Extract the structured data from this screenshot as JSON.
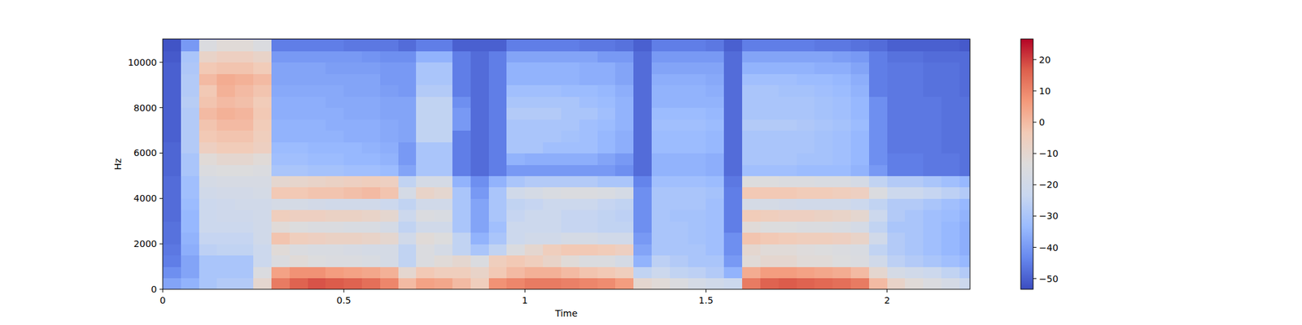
{
  "chart_data": {
    "type": "heatmap",
    "x_label": "Time",
    "y_label": "Hz",
    "color": "coolwarm",
    "xlim": [
      0,
      2.229
    ],
    "ylim": [
      0,
      11025
    ],
    "xticks": [
      0,
      0.5,
      1,
      1.5,
      2
    ],
    "yticks": [
      0,
      2000,
      4000,
      6000,
      8000,
      10000
    ],
    "x": [
      0,
      0.05,
      0.1,
      0.15,
      0.2,
      0.25,
      0.3,
      0.35,
      0.4,
      0.45,
      0.5,
      0.55,
      0.6,
      0.65,
      0.7,
      0.75,
      0.8,
      0.85,
      0.9,
      0.95,
      1,
      1.05,
      1.1,
      1.15,
      1.2,
      1.25,
      1.3,
      1.35,
      1.4,
      1.45,
      1.5,
      1.55,
      1.6,
      1.65,
      1.7,
      1.75,
      1.8,
      1.85,
      1.9,
      1.95,
      2,
      2.05,
      2.1,
      2.15,
      2.2
    ],
    "y": [
      0,
      500,
      1000,
      1500,
      2000,
      2500,
      3000,
      3500,
      4000,
      4500,
      5000,
      5500,
      6000,
      6500,
      7000,
      7500,
      8000,
      8500,
      9000,
      9500,
      10000,
      10500
    ],
    "cells": [
      [
        -38,
        -35,
        -30,
        -28,
        -28,
        -10,
        12,
        16,
        18,
        17,
        16,
        14,
        10,
        0,
        5,
        4,
        0,
        -5,
        8,
        10,
        12,
        12,
        11,
        10,
        9,
        6,
        -10,
        -12,
        -15,
        -18,
        -20,
        -22,
        12,
        16,
        17,
        16,
        15,
        14,
        12,
        0,
        -8,
        -12,
        -15,
        -18,
        -22
      ],
      [
        -42,
        -38,
        -30,
        -30,
        -30,
        -15,
        5,
        8,
        8,
        6,
        5,
        4,
        2,
        -10,
        -3,
        -5,
        -5,
        -8,
        -3,
        0,
        2,
        2,
        0,
        -2,
        -3,
        -5,
        -25,
        -22,
        -25,
        -26,
        -28,
        -35,
        3,
        6,
        6,
        5,
        4,
        3,
        0,
        -10,
        -18,
        -20,
        -22,
        -25,
        -28
      ],
      [
        -45,
        -38,
        -30,
        -30,
        -30,
        -22,
        -15,
        -12,
        -14,
        -15,
        -15,
        -16,
        -18,
        -25,
        -15,
        -12,
        -10,
        -15,
        -5,
        -3,
        -5,
        -8,
        -12,
        -15,
        -15,
        -18,
        -35,
        -26,
        -28,
        -30,
        -30,
        -40,
        -12,
        -10,
        -10,
        -12,
        -12,
        -14,
        -15,
        -20,
        -26,
        -28,
        -30,
        -32,
        -34
      ],
      [
        -46,
        -36,
        -26,
        -25,
        -25,
        -22,
        -12,
        -15,
        -16,
        -16,
        -17,
        -18,
        -18,
        -25,
        -15,
        -18,
        -25,
        -30,
        -25,
        -15,
        -10,
        -5,
        -3,
        -3,
        -4,
        -6,
        -38,
        -30,
        -30,
        -30,
        -32,
        -42,
        -10,
        -12,
        -12,
        -13,
        -14,
        -15,
        -16,
        -25,
        -28,
        -30,
        -32,
        -34,
        -36
      ],
      [
        -47,
        -35,
        -24,
        -24,
        -24,
        -20,
        -2,
        -5,
        -6,
        -7,
        -7,
        -8,
        -10,
        -20,
        -12,
        -14,
        -25,
        -35,
        -30,
        -22,
        -20,
        -20,
        -18,
        -18,
        -20,
        -20,
        -40,
        -30,
        -30,
        -31,
        -32,
        -42,
        -2,
        -3,
        -4,
        -5,
        -5,
        -6,
        -8,
        -20,
        -28,
        -30,
        -32,
        -34,
        -36
      ],
      [
        -47,
        -34,
        -22,
        -22,
        -22,
        -20,
        -12,
        -14,
        -15,
        -15,
        -16,
        -16,
        -18,
        -25,
        -20,
        -20,
        -30,
        -38,
        -32,
        -22,
        -22,
        -22,
        -24,
        -24,
        -25,
        -25,
        -42,
        -30,
        -30,
        -31,
        -32,
        -45,
        -12,
        -14,
        -14,
        -15,
        -15,
        -16,
        -18,
        -25,
        -30,
        -30,
        -32,
        -34,
        -36
      ],
      [
        -48,
        -34,
        -22,
        -21,
        -21,
        -20,
        -5,
        -6,
        -6,
        -7,
        -7,
        -8,
        -10,
        -22,
        -15,
        -16,
        -30,
        -38,
        -30,
        -24,
        -22,
        -22,
        -24,
        -24,
        -25,
        -26,
        -42,
        -30,
        -31,
        -31,
        -32,
        -45,
        -4,
        -5,
        -6,
        -6,
        -7,
        -8,
        -10,
        -22,
        -28,
        -30,
        -32,
        -33,
        -35
      ],
      [
        -48,
        -33,
        -22,
        -21,
        -20,
        -20,
        -18,
        -18,
        -19,
        -20,
        -20,
        -20,
        -22,
        -25,
        -20,
        -20,
        -30,
        -38,
        -30,
        -25,
        -24,
        -22,
        -22,
        -22,
        -24,
        -25,
        -42,
        -30,
        -30,
        -30,
        -32,
        -45,
        -18,
        -18,
        -19,
        -20,
        -20,
        -20,
        -22,
        -25,
        -28,
        -28,
        -30,
        -32,
        -34
      ],
      [
        -48,
        -32,
        -20,
        -19,
        -19,
        -18,
        -3,
        -3,
        -2,
        -2,
        -1,
        0,
        -2,
        -18,
        -8,
        -10,
        -30,
        -40,
        -30,
        -20,
        -18,
        -16,
        -15,
        -15,
        -16,
        -18,
        -42,
        -30,
        -30,
        -30,
        -31,
        -45,
        -3,
        -3,
        -3,
        -4,
        -4,
        -5,
        -6,
        -15,
        -22,
        -22,
        -24,
        -26,
        -28
      ],
      [
        -48,
        -32,
        -18,
        -17,
        -17,
        -17,
        -10,
        -9,
        -8,
        -7,
        -6,
        -5,
        -6,
        -25,
        -18,
        -18,
        -35,
        -42,
        -35,
        -30,
        -28,
        -28,
        -28,
        -28,
        -30,
        -30,
        -44,
        -32,
        -32,
        -32,
        -33,
        -46,
        -14,
        -14,
        -15,
        -15,
        -16,
        -16,
        -18,
        -25,
        -28,
        -28,
        -30,
        -32,
        -34
      ],
      [
        -49,
        -30,
        -15,
        -14,
        -14,
        -15,
        -30,
        -30,
        -31,
        -31,
        -32,
        -32,
        -33,
        -38,
        -30,
        -30,
        -45,
        -48,
        -45,
        -40,
        -40,
        -40,
        -40,
        -40,
        -40,
        -42,
        -48,
        -35,
        -35,
        -35,
        -36,
        -48,
        -32,
        -32,
        -32,
        -33,
        -33,
        -33,
        -35,
        -40,
        -45,
        -45,
        -46,
        -46,
        -47
      ],
      [
        -49,
        -30,
        -12,
        -10,
        -10,
        -12,
        -32,
        -32,
        -33,
        -33,
        -34,
        -34,
        -35,
        -40,
        -30,
        -30,
        -45,
        -48,
        -45,
        -35,
        -36,
        -36,
        -36,
        -36,
        -38,
        -40,
        -48,
        -35,
        -35,
        -35,
        -36,
        -48,
        -30,
        -30,
        -30,
        -31,
        -31,
        -32,
        -34,
        -42,
        -45,
        -45,
        -46,
        -46,
        -47
      ],
      [
        -49,
        -28,
        -6,
        -4,
        -4,
        -6,
        -33,
        -33,
        -34,
        -34,
        -34,
        -35,
        -36,
        -40,
        -30,
        -30,
        -45,
        -48,
        -45,
        -30,
        -30,
        -32,
        -32,
        -32,
        -34,
        -36,
        -48,
        -33,
        -33,
        -33,
        -34,
        -48,
        -30,
        -30,
        -30,
        -30,
        -31,
        -32,
        -34,
        -42,
        -46,
        -46,
        -46,
        -47,
        -47
      ],
      [
        -50,
        -28,
        -3,
        -2,
        -2,
        -5,
        -35,
        -35,
        -35,
        -35,
        -36,
        -36,
        -37,
        -38,
        -25,
        -25,
        -45,
        -48,
        -45,
        -30,
        -30,
        -30,
        -31,
        -32,
        -34,
        -36,
        -48,
        -33,
        -33,
        -33,
        -34,
        -48,
        -30,
        -30,
        -30,
        -30,
        -31,
        -32,
        -34,
        -42,
        -46,
        -46,
        -46,
        -47,
        -47
      ],
      [
        -50,
        -28,
        -2,
        0,
        0,
        -4,
        -35,
        -35,
        -35,
        -36,
        -36,
        -36,
        -37,
        -38,
        -25,
        -25,
        -40,
        -48,
        -45,
        -30,
        -30,
        -30,
        -30,
        -32,
        -33,
        -35,
        -48,
        -32,
        -32,
        -32,
        -33,
        -48,
        -28,
        -28,
        -28,
        -29,
        -30,
        -31,
        -33,
        -42,
        -46,
        -46,
        -46,
        -47,
        -47
      ],
      [
        -50,
        -28,
        0,
        2,
        1,
        -3,
        -36,
        -36,
        -36,
        -36,
        -37,
        -37,
        -38,
        -38,
        -25,
        -25,
        -40,
        -48,
        -45,
        -28,
        -28,
        -28,
        -30,
        -30,
        -32,
        -35,
        -48,
        -33,
        -33,
        -33,
        -34,
        -48,
        -30,
        -30,
        -30,
        -30,
        -31,
        -32,
        -34,
        -42,
        -46,
        -46,
        -46,
        -47,
        -47
      ],
      [
        -50,
        -27,
        -2,
        0,
        -1,
        -4,
        -36,
        -36,
        -36,
        -37,
        -37,
        -37,
        -38,
        -38,
        -25,
        -25,
        -42,
        -48,
        -45,
        -30,
        -30,
        -30,
        -30,
        -32,
        -33,
        -35,
        -48,
        -35,
        -35,
        -35,
        -35,
        -48,
        -30,
        -30,
        -30,
        -30,
        -31,
        -32,
        -34,
        -42,
        -46,
        -46,
        -46,
        -47,
        -47
      ],
      [
        -50,
        -28,
        -3,
        2,
        0,
        -2,
        -37,
        -37,
        -37,
        -37,
        -38,
        -38,
        -39,
        -40,
        -28,
        -28,
        -45,
        -48,
        -45,
        -32,
        -32,
        -32,
        -33,
        -33,
        -34,
        -36,
        -48,
        -35,
        -35,
        -35,
        -36,
        -48,
        -30,
        -30,
        -31,
        -31,
        -32,
        -33,
        -35,
        -45,
        -46,
        -46,
        -47,
        -47,
        -48
      ],
      [
        -50,
        -28,
        0,
        3,
        2,
        0,
        -38,
        -38,
        -38,
        -38,
        -38,
        -38,
        -40,
        -40,
        -30,
        -30,
        -45,
        -48,
        -45,
        -35,
        -35,
        -35,
        -35,
        -36,
        -36,
        -38,
        -48,
        -36,
        -36,
        -36,
        -37,
        -48,
        -32,
        -32,
        -32,
        -33,
        -33,
        -34,
        -36,
        -45,
        -46,
        -46,
        -47,
        -47,
        -48
      ],
      [
        -50,
        -29,
        -3,
        -2,
        -2,
        -4,
        -38,
        -38,
        -38,
        -39,
        -39,
        -39,
        -40,
        -40,
        -30,
        -30,
        -45,
        -48,
        -45,
        -35,
        -35,
        -35,
        -35,
        -36,
        -36,
        -38,
        -48,
        -38,
        -38,
        -38,
        -38,
        -48,
        -35,
        -35,
        -35,
        -35,
        -36,
        -36,
        -38,
        -45,
        -46,
        -46,
        -47,
        -47,
        -48
      ],
      [
        -51,
        -30,
        -8,
        -6,
        -6,
        -8,
        -40,
        -40,
        -40,
        -40,
        -40,
        -41,
        -42,
        -42,
        -35,
        -35,
        -45,
        -48,
        -45,
        -38,
        -38,
        -38,
        -38,
        -38,
        -40,
        -40,
        -48,
        -40,
        -40,
        -40,
        -40,
        -48,
        -38,
        -38,
        -38,
        -38,
        -38,
        -39,
        -40,
        -45,
        -47,
        -47,
        -48,
        -48,
        -48
      ],
      [
        -52,
        -40,
        -15,
        -12,
        -12,
        -15,
        -45,
        -45,
        -45,
        -45,
        -46,
        -46,
        -46,
        -48,
        -45,
        -45,
        -50,
        -50,
        -50,
        -45,
        -45,
        -45,
        -45,
        -46,
        -46,
        -47,
        -50,
        -45,
        -45,
        -45,
        -46,
        -50,
        -45,
        -45,
        -45,
        -45,
        -46,
        -46,
        -47,
        -48,
        -50,
        -50,
        -50,
        -50,
        -51
      ]
    ],
    "colorbar": {
      "range": [
        -53.4,
        26.6
      ],
      "ticks": [
        {
          "value": -50,
          "label": "−50"
        },
        {
          "value": -40,
          "label": "−40"
        },
        {
          "value": -30,
          "label": "−30"
        },
        {
          "value": -20,
          "label": "−20"
        },
        {
          "value": -10,
          "label": "−10"
        },
        0,
        10,
        20
      ]
    }
  }
}
